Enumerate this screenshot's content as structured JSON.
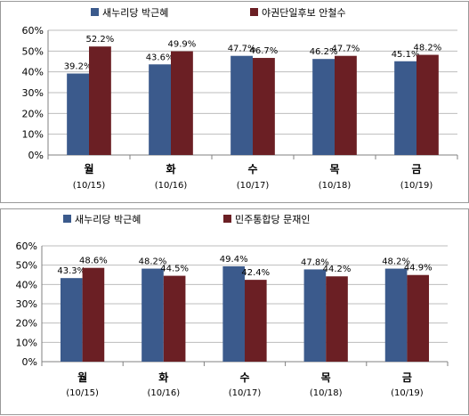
{
  "colors": {
    "series_a": "#3b5a8c",
    "series_b": "#6b1f24",
    "grid": "#bdbdbd",
    "axis": "#808080"
  },
  "chart_data": [
    {
      "type": "bar",
      "title": "",
      "xlabel": "",
      "ylabel": "",
      "ylim": [
        0,
        60
      ],
      "y_ticks": [
        "0%",
        "10%",
        "20%",
        "30%",
        "40%",
        "50%",
        "60%"
      ],
      "grid": true,
      "legend_position": "top",
      "categories": [
        "월",
        "화",
        "수",
        "목",
        "금"
      ],
      "category_dates": [
        "(10/15)",
        "(10/16)",
        "(10/17)",
        "(10/18)",
        "(10/19)"
      ],
      "series": [
        {
          "name": "새누리당 박근혜",
          "color": "#3b5a8c",
          "values": [
            39.2,
            43.6,
            47.7,
            46.2,
            45.1
          ],
          "labels": [
            "39.2%",
            "43.6%",
            "47.7%",
            "46.2%",
            "45.1%"
          ]
        },
        {
          "name": "야권단일후보 안철수",
          "color": "#6b1f24",
          "values": [
            52.2,
            49.9,
            46.7,
            47.7,
            48.2
          ],
          "labels": [
            "52.2%",
            "49.9%",
            "46.7%",
            "47.7%",
            "48.2%"
          ]
        }
      ]
    },
    {
      "type": "bar",
      "title": "",
      "xlabel": "",
      "ylabel": "",
      "ylim": [
        0,
        60
      ],
      "y_ticks": [
        "0%",
        "10%",
        "20%",
        "30%",
        "40%",
        "50%",
        "60%"
      ],
      "grid": true,
      "legend_position": "top",
      "categories": [
        "월",
        "화",
        "수",
        "목",
        "금"
      ],
      "category_dates": [
        "(10/15)",
        "(10/16)",
        "(10/17)",
        "(10/18)",
        "(10/19)"
      ],
      "series": [
        {
          "name": "새누리당 박근혜",
          "color": "#3b5a8c",
          "values": [
            43.3,
            48.2,
            49.4,
            47.8,
            48.2
          ],
          "labels": [
            "43.3%",
            "48.2%",
            "49.4%",
            "47.8%",
            "48.2%"
          ]
        },
        {
          "name": "민주통합당 문재인",
          "color": "#6b1f24",
          "values": [
            48.6,
            44.5,
            42.4,
            44.2,
            44.9
          ],
          "labels": [
            "48.6%",
            "44.5%",
            "42.4%",
            "44.2%",
            "44.9%"
          ]
        }
      ]
    }
  ]
}
